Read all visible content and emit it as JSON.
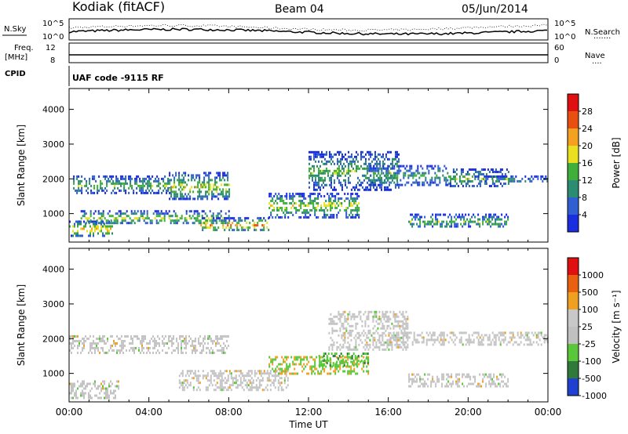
{
  "header": {
    "station": "Kodiak (fitACF)",
    "beam": "Beam 04",
    "date": "05/Jun/2014"
  },
  "status_panels": {
    "nsky_label": "N.Sky",
    "nsearch_label": "N.Search",
    "freq_label_line1": "Freq.",
    "freq_label_line2": "[MHz]",
    "nave_label": "Nave",
    "cpid_label": "CPID",
    "left_ticks_top": [
      "10^5",
      "10^0"
    ],
    "right_ticks_top": [
      "10^5",
      "10^0"
    ],
    "freq_ticks": [
      "12",
      "8"
    ],
    "nave_ticks": [
      "60",
      "0"
    ],
    "cpid_text": "UAF code -9115 RF",
    "dots": "·······",
    "dots_short": "····"
  },
  "chart_data": [
    {
      "type": "heatmap",
      "panel": "power",
      "ylabel": "Slant Range [km]",
      "xlabel": "",
      "yticks": [
        "4000",
        "3000",
        "2000",
        "1000"
      ],
      "ytick_values": [
        4000,
        3000,
        2000,
        1000
      ],
      "ylim": [
        180,
        4600
      ],
      "xlim": [
        0,
        24
      ],
      "colorbar_label": "Power [dB]",
      "colorbar_ticks": [
        "28",
        "24",
        "20",
        "16",
        "12",
        "8",
        "4"
      ],
      "colorbar_range": [
        0,
        30
      ],
      "colors": [
        "#1a2ee0",
        "#2f5fd0",
        "#2a8c70",
        "#3fae3a",
        "#e8e020",
        "#f4a020",
        "#e85010",
        "#e01010"
      ],
      "bands": [
        {
          "start": 0.0,
          "end": 2.2,
          "rmin": 350,
          "rmax": 800,
          "level": 20
        },
        {
          "start": 0.2,
          "end": 5.0,
          "rmin": 1600,
          "rmax": 2100,
          "level": 12
        },
        {
          "start": 0.5,
          "end": 8.0,
          "rmin": 700,
          "rmax": 1100,
          "level": 14
        },
        {
          "start": 5.0,
          "end": 8.0,
          "rmin": 1400,
          "rmax": 2200,
          "level": 16
        },
        {
          "start": 6.5,
          "end": 10.0,
          "rmin": 500,
          "rmax": 900,
          "level": 22
        },
        {
          "start": 10.0,
          "end": 14.5,
          "rmin": 900,
          "rmax": 1600,
          "level": 16
        },
        {
          "start": 12.0,
          "end": 16.5,
          "rmin": 1700,
          "rmax": 2800,
          "level": 12
        },
        {
          "start": 15.0,
          "end": 19.0,
          "rmin": 1800,
          "rmax": 2400,
          "level": 10
        },
        {
          "start": 19.0,
          "end": 22.0,
          "rmin": 1800,
          "rmax": 2300,
          "level": 14
        },
        {
          "start": 20.0,
          "end": 24.0,
          "rmin": 1900,
          "rmax": 2100,
          "level": 8
        },
        {
          "start": 17.0,
          "end": 22.0,
          "rmin": 600,
          "rmax": 1000,
          "level": 12
        }
      ]
    },
    {
      "type": "heatmap",
      "panel": "velocity",
      "ylabel": "Slant Range [km]",
      "xlabel": "Time UT",
      "yticks": [
        "4000",
        "3000",
        "2000",
        "1000"
      ],
      "ytick_values": [
        4000,
        3000,
        2000,
        1000
      ],
      "ylim": [
        180,
        4600
      ],
      "xlim": [
        0,
        24
      ],
      "xticks": [
        "00:00",
        "04:00",
        "08:00",
        "12:00",
        "16:00",
        "20:00",
        "00:00"
      ],
      "colorbar_label": "Velocity [m s⁻¹]",
      "colorbar_ticks": [
        "1000",
        "500",
        "100",
        "25",
        "-25",
        "-100",
        "-500",
        "-1000"
      ],
      "colors": [
        "#2040d0",
        "#2f7a3a",
        "#5ac63a",
        "#c0c0c0",
        "#c8c8c8",
        "#f0a020",
        "#e86010",
        "#e01010"
      ],
      "bands": [
        {
          "start": 0.0,
          "end": 8.0,
          "rmin": 1600,
          "rmax": 2100,
          "kind": "ground"
        },
        {
          "start": 0.0,
          "end": 2.5,
          "rmin": 300,
          "rmax": 800,
          "kind": "ground"
        },
        {
          "start": 5.5,
          "end": 11.0,
          "rmin": 500,
          "rmax": 1100,
          "kind": "ground"
        },
        {
          "start": 10.0,
          "end": 15.0,
          "rmin": 1000,
          "rmax": 1500,
          "kind": "negative"
        },
        {
          "start": 13.0,
          "end": 17.0,
          "rmin": 1700,
          "rmax": 2800,
          "kind": "ground"
        },
        {
          "start": 16.0,
          "end": 24.0,
          "rmin": 1800,
          "rmax": 2200,
          "kind": "ground"
        },
        {
          "start": 17.0,
          "end": 22.0,
          "rmin": 600,
          "rmax": 1000,
          "kind": "ground"
        },
        {
          "start": 12.5,
          "end": 15.0,
          "rmin": 1200,
          "rmax": 1600,
          "kind": "positive"
        }
      ]
    }
  ]
}
